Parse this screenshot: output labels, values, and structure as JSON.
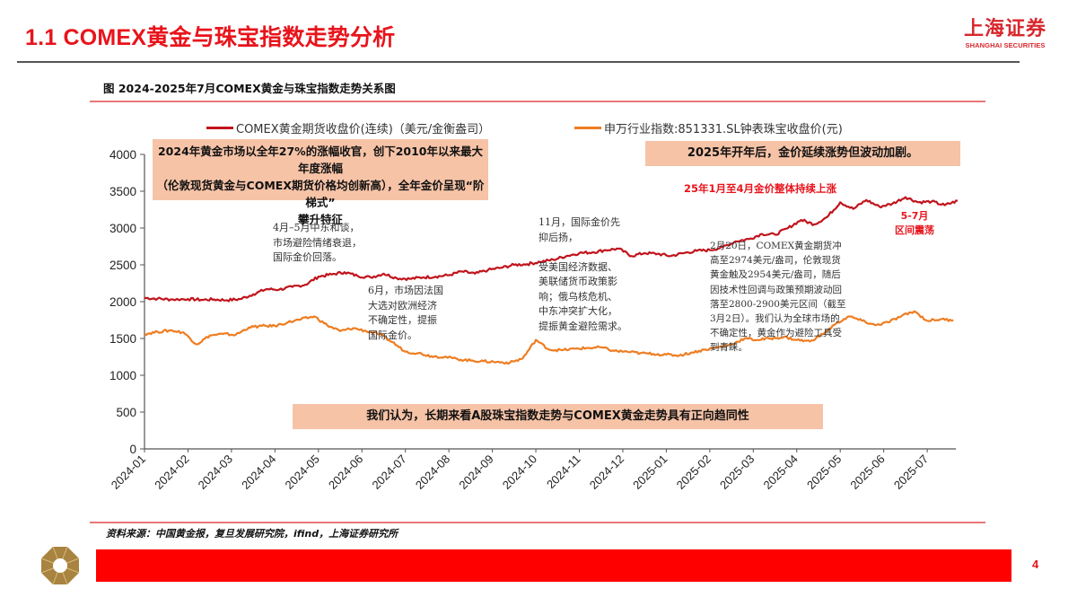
{
  "header": {
    "title": "1.1 COMEX黄金与珠宝指数走势分析",
    "brand_cn": "上海证券",
    "brand_en": "SHANGHAI SECURITIES"
  },
  "figure": {
    "title": "图 2024-2025年7月COMEX黄金与珠宝指数走势关系图",
    "source": "资料来源：中国黄金报，复旦发展研究院，ifind，上海证券研究所"
  },
  "annotations": {
    "box_2024": "2024年黄金市场以全年27%的涨幅收官，创下2010年以来最大年度涨幅\n（伦敦现货黄金与COMEX期货价格均创新高），全年金价呈现“阶梯式”\n攀升特征",
    "box_2025": "2025年开年后，金价延续涨势但波动加剧。",
    "box_conclusion": "我们认为，长期来看A股珠宝指数走势与COMEX黄金走势具有正向趋同性",
    "apr_may": "4月–5月中东和谈，\n市场避险情绪衰退，\n国际金价回落。",
    "june": "6月，市场因法国\n大选对欧洲经济\n不确定性，提振\n国际金价。",
    "nov": "11月，国际金价先\n抑后扬，\n\n受美国经济数据、\n美联储货币政策影\n响；俄乌核危机、\n中东冲突扩大化，\n提振黄金避险需求。",
    "feb20": "2月20日，COMEX黄金期货冲\n高至2974美元/盎司，伦敦现货\n黄金触及2954美元/盎司，随后\n因技术性回调与政策预期波动回\n落至2800-2900美元区间（截至\n3月2日）。我们认为全球市场的\n不确定性，黄金作为避险工具受\n到青睐。",
    "jan_apr_red": "25年1月至4月金价整体持续上涨",
    "may_jul_red": "5-7月\n区间震荡"
  },
  "footer": {
    "page_number": "4"
  },
  "colors": {
    "accent_red": "#e8141c",
    "gold_series": "#c0141c",
    "jewelry_series": "#ee7d22",
    "note_fill": "#f6c3a7",
    "footer_bar": "#ff0000"
  },
  "chart_data": {
    "type": "line",
    "title": "图 2024-2025年7月COMEX黄金与珠宝指数走势关系图",
    "xlabel": "",
    "ylabel": "",
    "ylim": [
      0,
      4000
    ],
    "yticks": [
      0,
      500,
      1000,
      1500,
      2000,
      2500,
      3000,
      3500,
      4000
    ],
    "grid": false,
    "legend_position": "top",
    "categories": [
      "2024-01",
      "2024-02",
      "2024-03",
      "2024-04",
      "2024-05",
      "2024-06",
      "2024-07",
      "2024-08",
      "2024-09",
      "2024-10",
      "2024-11",
      "2024-12",
      "2025-01",
      "2025-02",
      "2025-03",
      "2025-04",
      "2025-05",
      "2025-06",
      "2025-07"
    ],
    "series": [
      {
        "name": "COMEX黄金期货收盘价(连续)（美元/金衡盎司）",
        "color": "#c0141c",
        "x": [
          0.0,
          0.3,
          0.6,
          1.0,
          1.3,
          1.6,
          1.9,
          2.2,
          2.5,
          2.8,
          3.1,
          3.4,
          3.7,
          4.0,
          4.3,
          4.6,
          4.9,
          5.2,
          5.5,
          5.8,
          6.1,
          6.4,
          6.7,
          7.0,
          7.3,
          7.6,
          7.9,
          8.2,
          8.5,
          8.8,
          9.1,
          9.4,
          9.7,
          10.0,
          10.3,
          10.6,
          10.9,
          11.2,
          11.5,
          11.8,
          12.1,
          12.4,
          12.7,
          13.0,
          13.3,
          13.6,
          13.9,
          14.2,
          14.5,
          14.8,
          15.1,
          15.4,
          15.7,
          16.0,
          16.3,
          16.6,
          16.9,
          17.2,
          17.5,
          17.8,
          18.1,
          18.4,
          18.7
        ],
        "values": [
          2050,
          2040,
          2030,
          2035,
          2025,
          2030,
          2020,
          2035,
          2100,
          2170,
          2165,
          2200,
          2230,
          2340,
          2370,
          2400,
          2350,
          2330,
          2380,
          2320,
          2310,
          2330,
          2340,
          2360,
          2410,
          2380,
          2430,
          2460,
          2500,
          2510,
          2540,
          2570,
          2620,
          2660,
          2670,
          2700,
          2720,
          2620,
          2660,
          2650,
          2620,
          2660,
          2690,
          2700,
          2740,
          2820,
          2850,
          2920,
          2910,
          3000,
          3110,
          3050,
          3150,
          3350,
          3260,
          3380,
          3290,
          3330,
          3420,
          3350,
          3360,
          3310,
          3370
        ]
      },
      {
        "name": "申万行业指数:851331.SL钟表珠宝收盘价(元)",
        "color": "#ee7d22",
        "x": [
          0.0,
          0.3,
          0.6,
          0.9,
          1.2,
          1.5,
          1.8,
          2.1,
          2.4,
          2.7,
          3.0,
          3.3,
          3.6,
          3.9,
          4.2,
          4.5,
          4.8,
          5.1,
          5.4,
          5.7,
          6.0,
          6.3,
          6.6,
          6.9,
          7.2,
          7.5,
          7.8,
          8.1,
          8.4,
          8.7,
          9.0,
          9.3,
          9.6,
          9.9,
          10.2,
          10.5,
          10.8,
          11.1,
          11.4,
          11.7,
          12.0,
          12.3,
          12.6,
          12.9,
          13.2,
          13.5,
          13.8,
          14.1,
          14.4,
          14.7,
          15.0,
          15.3,
          15.6,
          15.9,
          16.2,
          16.5,
          16.8,
          17.1,
          17.4,
          17.7,
          18.0,
          18.3,
          18.6
        ],
        "values": [
          1560,
          1590,
          1610,
          1580,
          1420,
          1540,
          1560,
          1550,
          1650,
          1670,
          1670,
          1720,
          1760,
          1800,
          1680,
          1600,
          1640,
          1600,
          1560,
          1450,
          1320,
          1300,
          1260,
          1250,
          1220,
          1200,
          1190,
          1180,
          1170,
          1230,
          1480,
          1350,
          1340,
          1360,
          1370,
          1380,
          1330,
          1320,
          1300,
          1290,
          1280,
          1270,
          1310,
          1350,
          1380,
          1420,
          1500,
          1480,
          1500,
          1520,
          1480,
          1460,
          1560,
          1700,
          1800,
          1740,
          1680,
          1720,
          1800,
          1870,
          1740,
          1760,
          1750
        ]
      }
    ],
    "annotations": [
      "2024年黄金市场以全年27%的涨幅收官，创下2010年以来最大年度涨幅（伦敦现货黄金与COMEX期货价格均创新高），全年金价呈现“阶梯式”攀升特征",
      "2025年开年后，金价延续涨势但波动加剧。",
      "25年1月至4月金价整体持续上涨",
      "5-7月 区间震荡",
      "我们认为，长期来看A股珠宝指数走势与COMEX黄金走势具有正向趋同性"
    ]
  }
}
